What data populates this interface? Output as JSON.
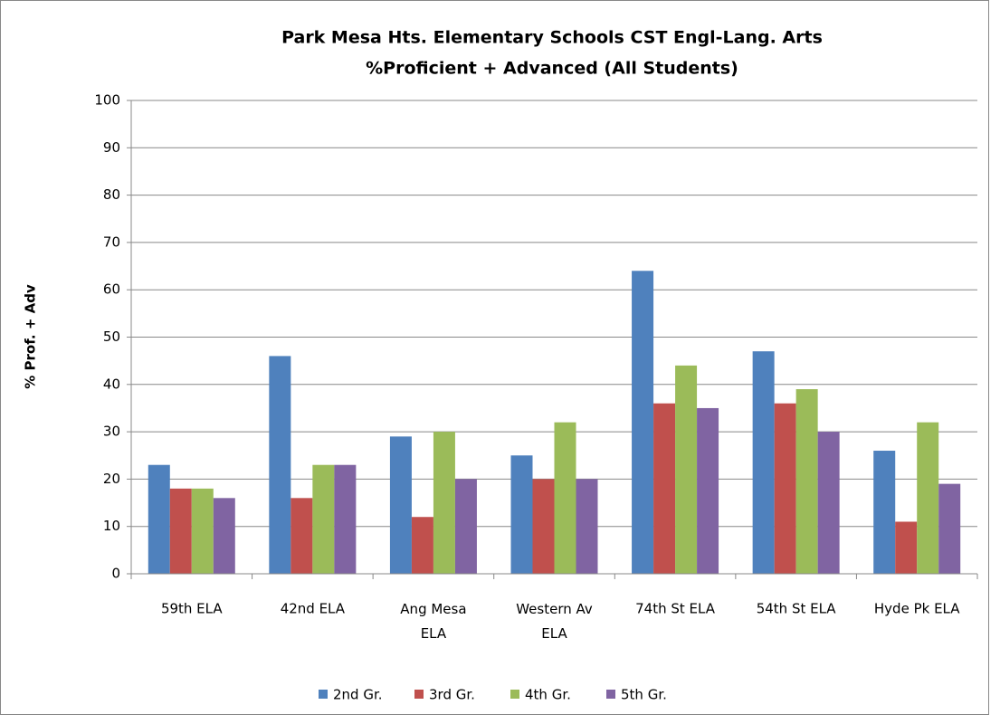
{
  "chart_data": {
    "type": "bar",
    "title": [
      "Park Mesa Hts. Elementary Schools CST Engl-Lang. Arts",
      "%Proficient + Advanced (All Students)"
    ],
    "y_label": "% Prof. + Adv",
    "categories": [
      "59th ELA",
      "42nd ELA",
      "Ang Mesa ELA",
      "Western Av ELA",
      "74th St ELA",
      "54th St ELA",
      "Hyde Pk ELA"
    ],
    "series": [
      {
        "name": "2nd Gr.",
        "color": "#4f81bd",
        "values": [
          23,
          46,
          29,
          25,
          64,
          47,
          26
        ]
      },
      {
        "name": "3rd Gr.",
        "color": "#c0504d",
        "values": [
          18,
          16,
          12,
          20,
          36,
          36,
          11
        ]
      },
      {
        "name": "4th Gr.",
        "color": "#9bbb59",
        "values": [
          18,
          23,
          30,
          32,
          44,
          39,
          32
        ]
      },
      {
        "name": "5th Gr.",
        "color": "#8064a2",
        "values": [
          16,
          23,
          20,
          20,
          35,
          30,
          19
        ]
      }
    ],
    "ylim": [
      0,
      100
    ],
    "yticks": [
      0,
      10,
      20,
      30,
      40,
      50,
      60,
      70,
      80,
      90,
      100
    ],
    "grid": true,
    "legend": "bottom"
  }
}
